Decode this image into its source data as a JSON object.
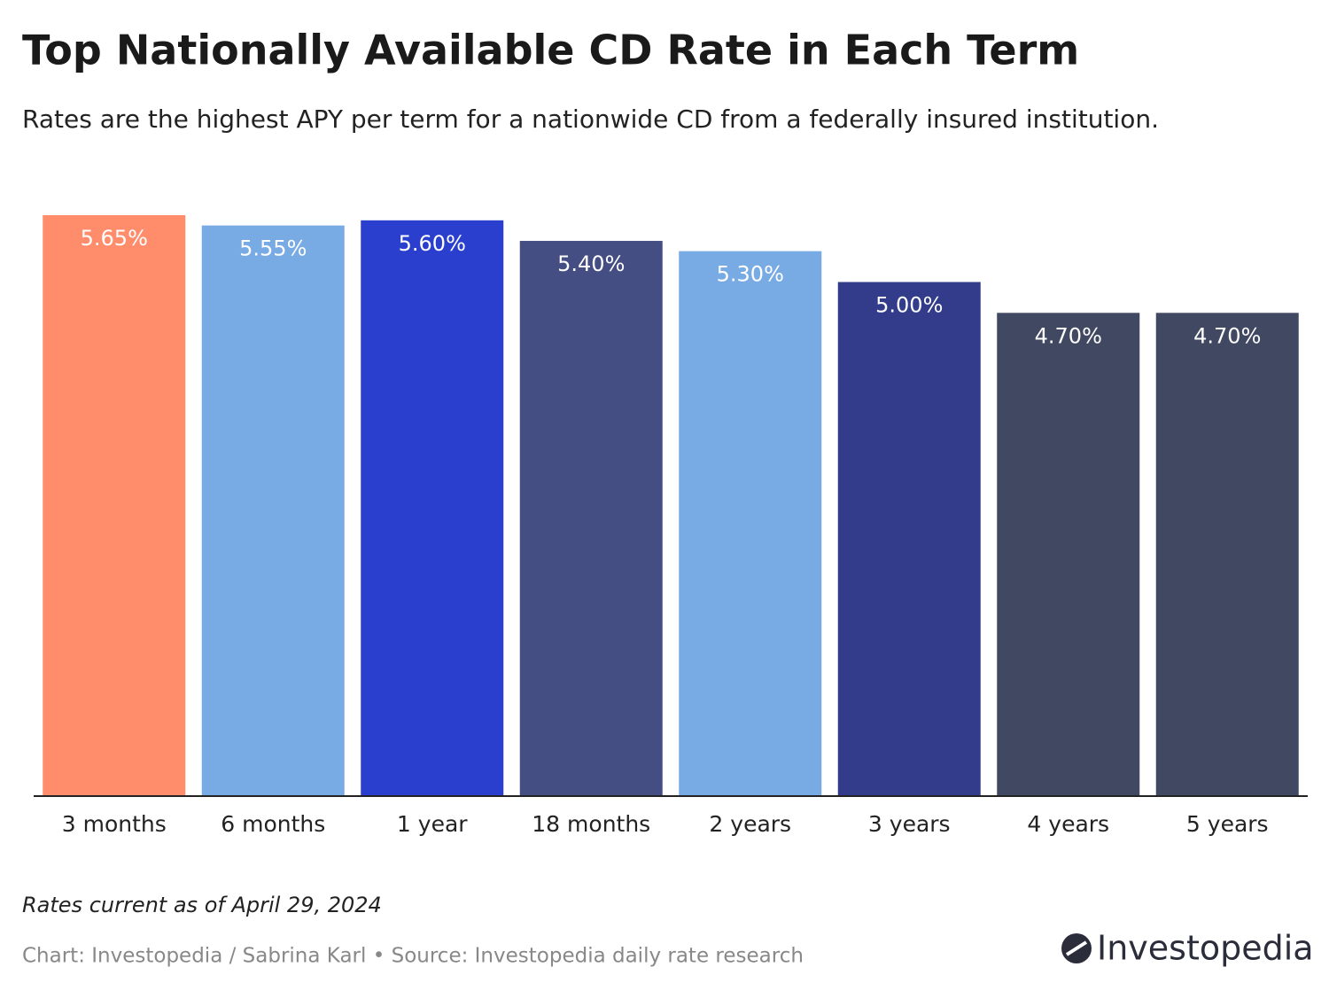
{
  "chart_data": {
    "type": "bar",
    "title": "Top Nationally Available CD Rate in Each Term",
    "subtitle": "Rates are the highest APY per term for a nationwide CD from a federally insured institution.",
    "categories": [
      "3 months",
      "6 months",
      "1 year",
      "18 months",
      "2 years",
      "3 years",
      "4 years",
      "5 years"
    ],
    "values": [
      5.65,
      5.55,
      5.6,
      5.4,
      5.3,
      5.0,
      4.7,
      4.7
    ],
    "value_labels": [
      "5.65%",
      "5.55%",
      "5.60%",
      "5.40%",
      "5.30%",
      "5.00%",
      "4.70%",
      "4.70%"
    ],
    "colors": [
      "#ff8c6b",
      "#78aae4",
      "#2b3fcf",
      "#454e82",
      "#78aae4",
      "#333c8a",
      "#414862",
      "#414862"
    ],
    "note": "Rates current as of April 29, 2024",
    "source": "Chart: Investopedia / Sabrina Karl • Source: Investopedia daily rate research",
    "brand": "Investopedia"
  }
}
